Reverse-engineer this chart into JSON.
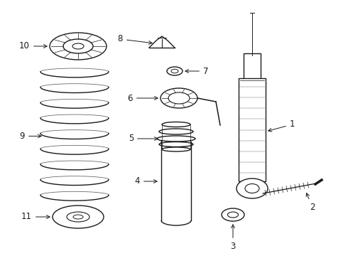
{
  "background_color": "#ffffff",
  "line_color": "#1a1a1a",
  "line_width": 1.0,
  "label_fontsize": 8.5,
  "fig_w": 4.9,
  "fig_h": 3.6,
  "dpi": 100
}
